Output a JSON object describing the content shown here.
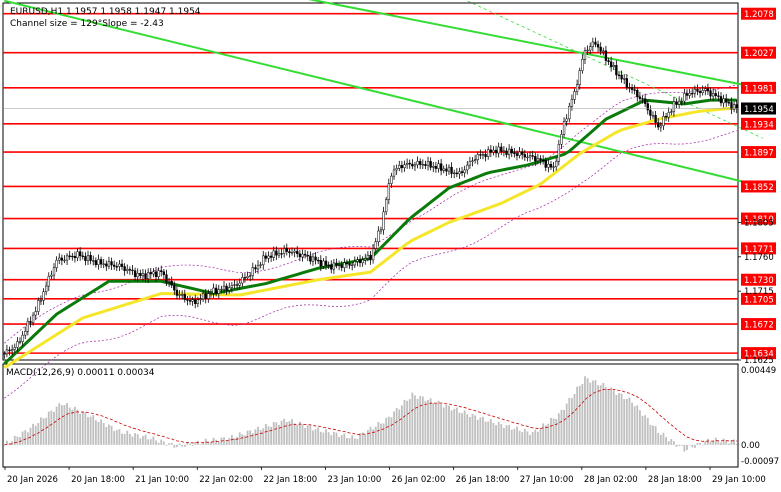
{
  "header": {
    "symbol_line": "EURUSD,H1  1.1957 1.1958 1.1947 1.1954",
    "channel_line": "Channel size = 129°Slope = -2.43"
  },
  "macd": {
    "label": "MACD(12,26,9) 0.00011 0.00034"
  },
  "chart_data": {
    "type": "candlestick",
    "symbol": "EURUSD",
    "timeframe": "H1",
    "ohlc_last": {
      "open": 1.1957,
      "high": 1.1958,
      "low": 1.1947,
      "close": 1.1954
    },
    "current_price_label": "1.1954",
    "ylim": [
      1.1625,
      1.2092
    ],
    "y_ticks": [
      {
        "value": 1.1625,
        "label": "1.1625"
      },
      {
        "value": 1.1715,
        "label": "1.1715"
      },
      {
        "value": 1.176,
        "label": "1.1760"
      },
      {
        "value": 1.1805,
        "label": "1.1805"
      }
    ],
    "levels": [
      {
        "value": 1.2078,
        "label": "1.2078"
      },
      {
        "value": 1.2027,
        "label": "1.2027"
      },
      {
        "value": 1.1981,
        "label": "1.1981"
      },
      {
        "value": 1.1934,
        "label": "1.1934"
      },
      {
        "value": 1.1897,
        "label": "1.1897"
      },
      {
        "value": 1.1852,
        "label": "1.1852"
      },
      {
        "value": 1.181,
        "label": "1.1810"
      },
      {
        "value": 1.1771,
        "label": "1.1771"
      },
      {
        "value": 1.173,
        "label": "1.1730"
      },
      {
        "value": 1.1705,
        "label": "1.1705"
      },
      {
        "value": 1.1672,
        "label": "1.1672"
      },
      {
        "value": 1.1634,
        "label": "1.1634"
      }
    ],
    "x_labels": [
      "20 Jan 2026",
      "20 Jan 18:00",
      "21 Jan 10:00",
      "22 Jan 02:00",
      "22 Jan 18:00",
      "23 Jan 10:00",
      "26 Jan 02:00",
      "26 Jan 18:00",
      "27 Jan 10:00",
      "28 Jan 02:00",
      "28 Jan 18:00",
      "29 Jan 10:00"
    ],
    "path_anchors": [
      [
        0,
        1.1633
      ],
      [
        5,
        1.1645
      ],
      [
        12,
        1.169
      ],
      [
        20,
        1.1755
      ],
      [
        28,
        1.1763
      ],
      [
        36,
        1.1752
      ],
      [
        44,
        1.1748
      ],
      [
        52,
        1.1735
      ],
      [
        60,
        1.174
      ],
      [
        66,
        1.1712
      ],
      [
        72,
        1.17
      ],
      [
        80,
        1.1715
      ],
      [
        88,
        1.1722
      ],
      [
        94,
        1.1738
      ],
      [
        100,
        1.176
      ],
      [
        108,
        1.1768
      ],
      [
        116,
        1.176
      ],
      [
        124,
        1.1748
      ],
      [
        132,
        1.175
      ],
      [
        140,
        1.176
      ],
      [
        144,
        1.18
      ],
      [
        148,
        1.187
      ],
      [
        152,
        1.188
      ],
      [
        160,
        1.1882
      ],
      [
        168,
        1.1875
      ],
      [
        174,
        1.1868
      ],
      [
        180,
        1.189
      ],
      [
        188,
        1.19
      ],
      [
        196,
        1.1895
      ],
      [
        204,
        1.1888
      ],
      [
        210,
        1.1875
      ],
      [
        214,
        1.1935
      ],
      [
        218,
        1.1975
      ],
      [
        222,
        1.203
      ],
      [
        226,
        1.204
      ],
      [
        232,
        1.201
      ],
      [
        238,
        1.1985
      ],
      [
        244,
        1.1965
      ],
      [
        250,
        1.193
      ],
      [
        256,
        1.1958
      ],
      [
        262,
        1.1975
      ],
      [
        268,
        1.1978
      ],
      [
        274,
        1.1966
      ],
      [
        280,
        1.1954
      ]
    ],
    "sma_fast_anchors": [
      [
        0,
        1.162
      ],
      [
        20,
        1.1685
      ],
      [
        40,
        1.1728
      ],
      [
        60,
        1.1728
      ],
      [
        80,
        1.1712
      ],
      [
        100,
        1.1725
      ],
      [
        120,
        1.1745
      ],
      [
        140,
        1.1758
      ],
      [
        155,
        1.181
      ],
      [
        170,
        1.185
      ],
      [
        185,
        1.187
      ],
      [
        200,
        1.188
      ],
      [
        215,
        1.1895
      ],
      [
        230,
        1.194
      ],
      [
        245,
        1.1965
      ],
      [
        260,
        1.196
      ],
      [
        270,
        1.1965
      ],
      [
        280,
        1.1965
      ]
    ],
    "sma_slow_anchors": [
      [
        0,
        1.1615
      ],
      [
        30,
        1.168
      ],
      [
        60,
        1.1712
      ],
      [
        90,
        1.171
      ],
      [
        120,
        1.173
      ],
      [
        140,
        1.174
      ],
      [
        155,
        1.178
      ],
      [
        170,
        1.1805
      ],
      [
        190,
        1.183
      ],
      [
        205,
        1.1855
      ],
      [
        220,
        1.1895
      ],
      [
        235,
        1.1925
      ],
      [
        250,
        1.194
      ],
      [
        265,
        1.195
      ],
      [
        280,
        1.1955
      ]
    ],
    "channel": {
      "upper": {
        "start": [
          115,
          1.2098
        ],
        "end": [
          290,
          1.198
        ]
      },
      "lower": {
        "start": [
          0,
          1.2095
        ],
        "end": [
          290,
          1.1852
        ]
      }
    },
    "macd_hist_anchors": [
      [
        0,
        0.0
      ],
      [
        10,
        0.001
      ],
      [
        22,
        0.0025
      ],
      [
        32,
        0.0018
      ],
      [
        44,
        0.0008
      ],
      [
        56,
        0.0004
      ],
      [
        66,
        -0.0001
      ],
      [
        76,
        0.0002
      ],
      [
        86,
        0.0004
      ],
      [
        96,
        0.0009
      ],
      [
        108,
        0.0015
      ],
      [
        120,
        0.0009
      ],
      [
        134,
        0.0004
      ],
      [
        146,
        0.0015
      ],
      [
        156,
        0.003
      ],
      [
        166,
        0.0025
      ],
      [
        178,
        0.0018
      ],
      [
        190,
        0.0012
      ],
      [
        202,
        0.0007
      ],
      [
        212,
        0.0018
      ],
      [
        222,
        0.004
      ],
      [
        230,
        0.0035
      ],
      [
        240,
        0.0026
      ],
      [
        250,
        0.0008
      ],
      [
        260,
        -0.0003
      ],
      [
        270,
        0.0003
      ],
      [
        280,
        0.0002
      ]
    ],
    "macd_ticks": [
      {
        "value": 0.00449,
        "label": "0.00449"
      },
      {
        "value": 0.0,
        "label": "0.00"
      },
      {
        "value": -0.00097,
        "label": "-0.00097"
      }
    ],
    "colors": {
      "level": "#ff0000",
      "channel": "#33dd33",
      "sma_fast": "#0a7a0a",
      "sma_slow": "#f5e62a",
      "bull": "#ffffff",
      "bear": "#000000",
      "hist": "#c0c0c0",
      "signal": "#cc0000",
      "envelope": "#a020a0"
    }
  }
}
